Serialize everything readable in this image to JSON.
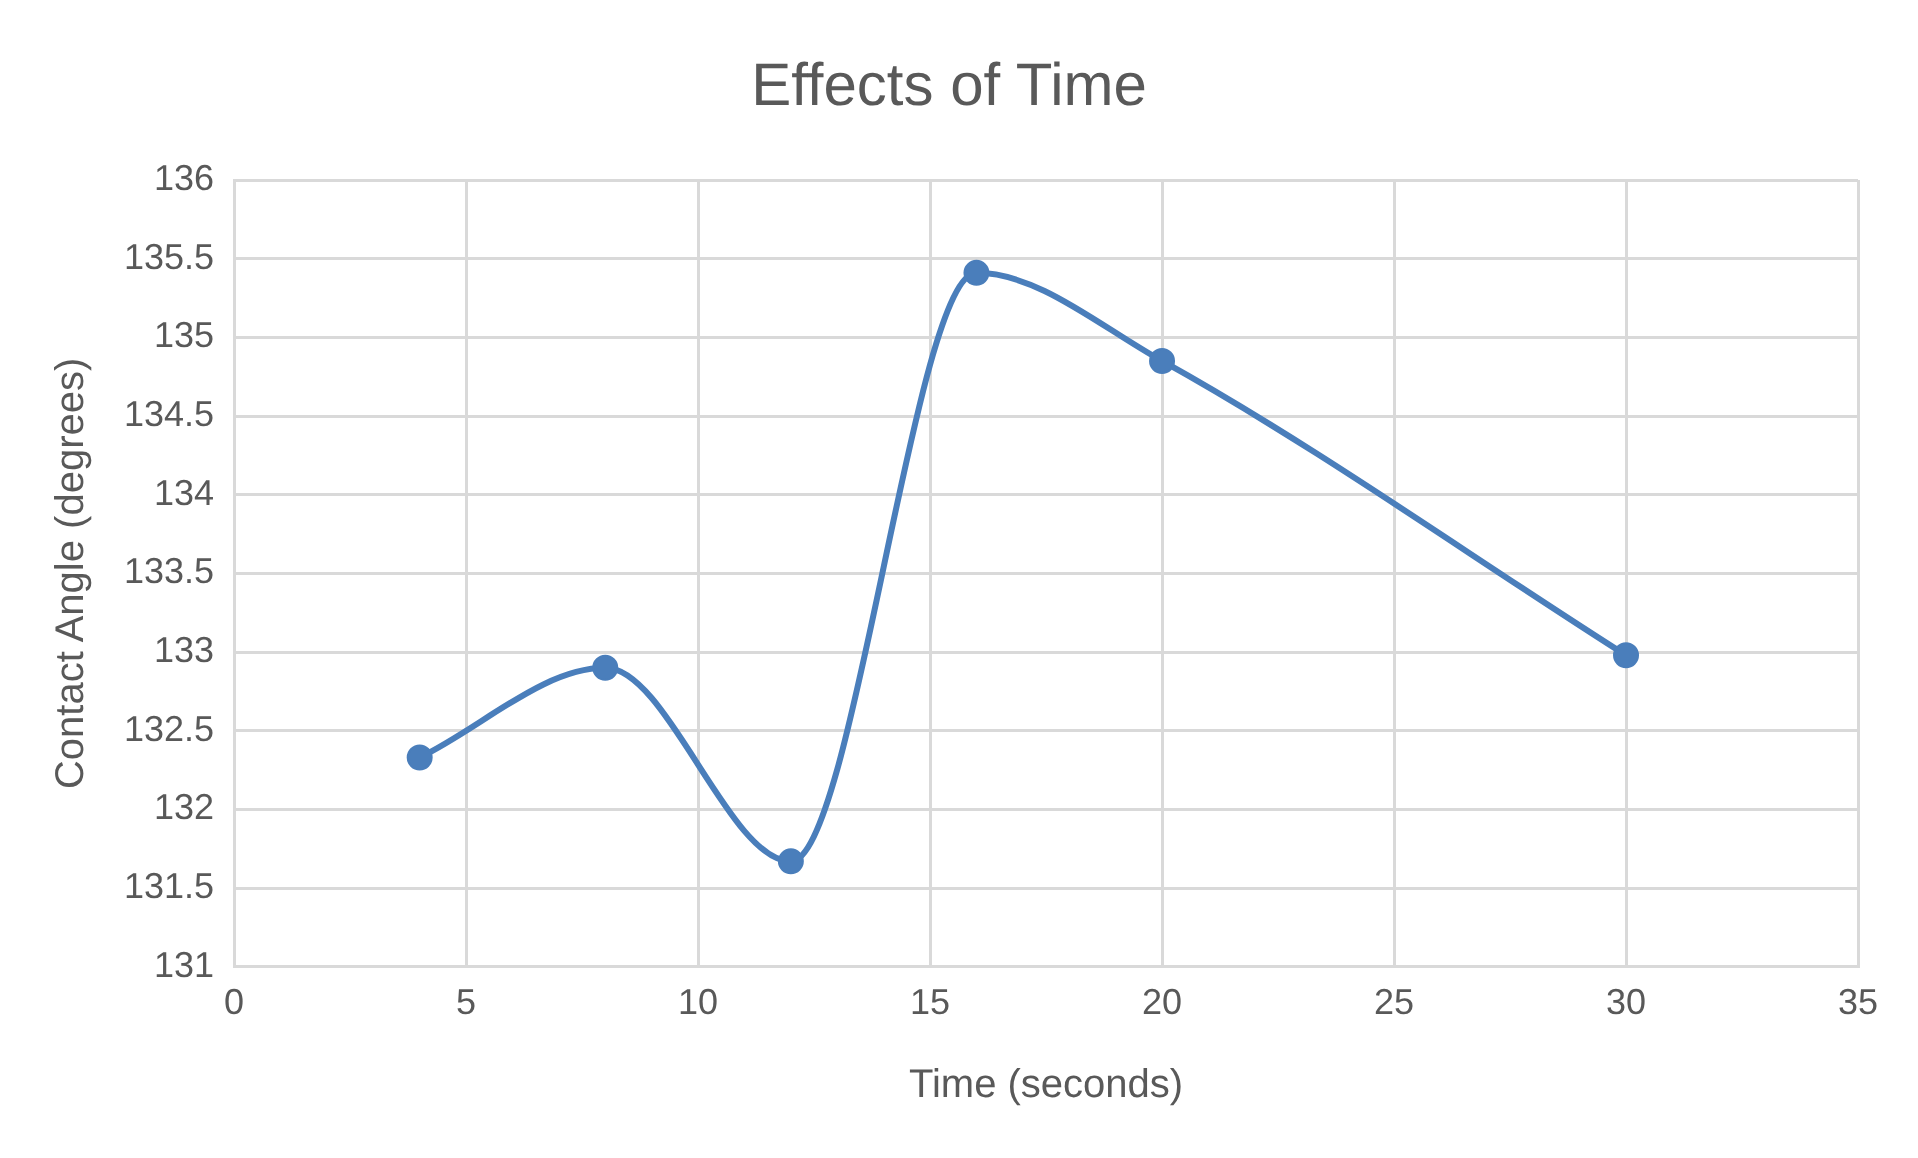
{
  "chart_data": {
    "type": "line",
    "title": "Effects of Time",
    "xlabel": "Time (seconds)",
    "ylabel": "Contact Angle (degrees)",
    "x": [
      4,
      8,
      12,
      16,
      20,
      30
    ],
    "series": [
      {
        "color": "#4a7ebb",
        "values": [
          132.33,
          132.9,
          131.67,
          135.41,
          134.85,
          132.98
        ]
      }
    ],
    "xlim": [
      0,
      35
    ],
    "xticks": [
      0,
      5,
      10,
      15,
      20,
      25,
      30,
      35
    ],
    "ylim": [
      131,
      136
    ],
    "yticks": [
      131,
      131.5,
      132,
      132.5,
      133,
      133.5,
      134,
      134.5,
      135,
      135.5,
      136
    ],
    "grid": true,
    "legend": false,
    "marker": "circle",
    "line_style": "solid"
  }
}
